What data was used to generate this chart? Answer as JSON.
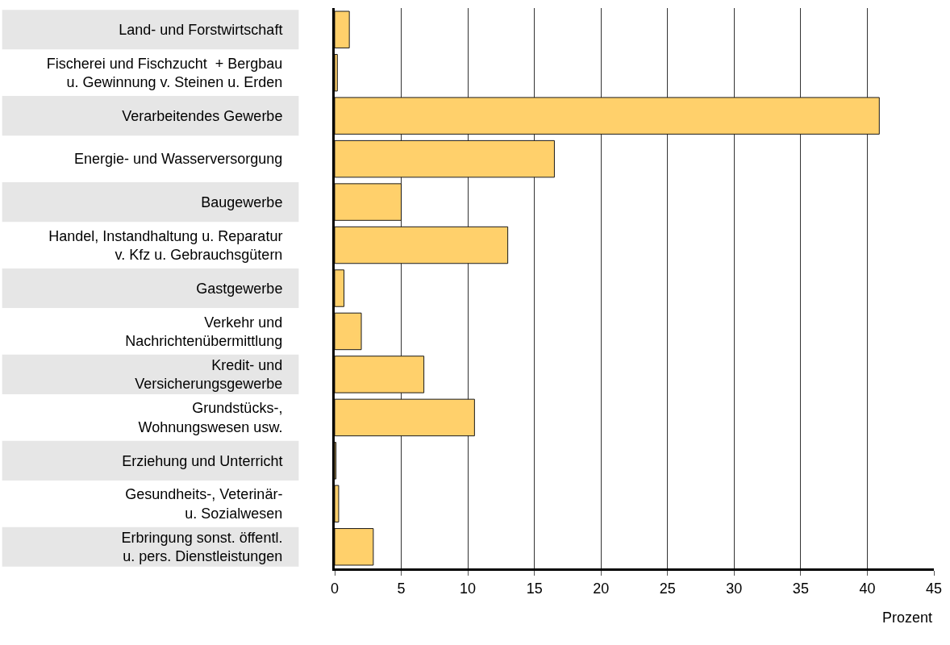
{
  "chart_data": {
    "type": "bar",
    "orientation": "horizontal",
    "xlabel": "Prozent",
    "categories": [
      "Land- und Forstwirtschaft",
      "Fischerei und Fischzucht  + Bergbau\nu. Gewinnung v. Steinen u. Erden",
      "Verarbeitendes Gewerbe",
      "Energie- und Wasserversorgung",
      "Baugewerbe",
      "Handel, Instandhaltung u. Reparatur\nv. Kfz u. Gebrauchsgütern",
      "Gastgewerbe",
      "Verkehr und\nNachrichtenübermittlung",
      "Kredit- und\nVersicherungsgewerbe",
      "Grundstücks-,\nWohnungswesen usw.",
      "Erziehung und Unterricht",
      "Gesundheits-, Veterinär-\nu. Sozialwesen",
      "Erbringung sonst. öffentl.\nu. pers. Dienstleistungen"
    ],
    "values": [
      1.1,
      0.2,
      40.9,
      16.5,
      5.0,
      13.0,
      0.7,
      2.0,
      6.7,
      10.5,
      0.1,
      0.3,
      2.9
    ],
    "color": "#ffd06b",
    "xlim": [
      0,
      45
    ],
    "xticks": [
      0,
      5,
      10,
      15,
      20,
      25,
      30,
      35,
      40,
      45
    ],
    "grid": "x"
  }
}
